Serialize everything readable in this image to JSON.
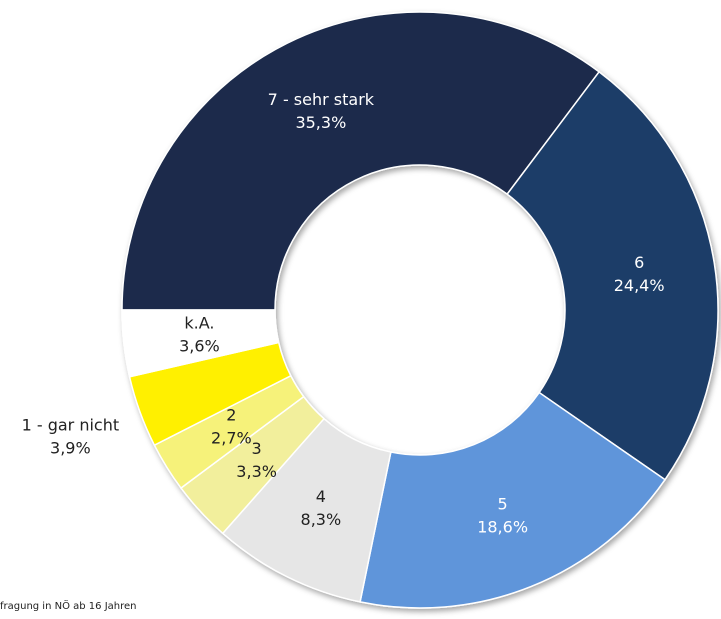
{
  "chart_data": {
    "type": "donut",
    "categories": [
      "7 - sehr stark",
      "6",
      "5",
      "4",
      "3",
      "2",
      "1 - gar nicht",
      "k.A."
    ],
    "values": [
      35.3,
      24.4,
      18.6,
      8.3,
      3.3,
      2.7,
      3.9,
      3.6
    ],
    "value_labels": [
      "35,3%",
      "24,4%",
      "18,6%",
      "8,3%",
      "3,3%",
      "2,7%",
      "3,9%",
      "3,6%"
    ],
    "colors": [
      "#1a2c4c",
      "#1f3c68",
      "#5f95da",
      "#e6e6e6",
      "#f2ef9c",
      "#f6f27a",
      "#fff000",
      "#ffffff"
    ],
    "note": "fragung in NÖ ab 16 Jahren"
  }
}
